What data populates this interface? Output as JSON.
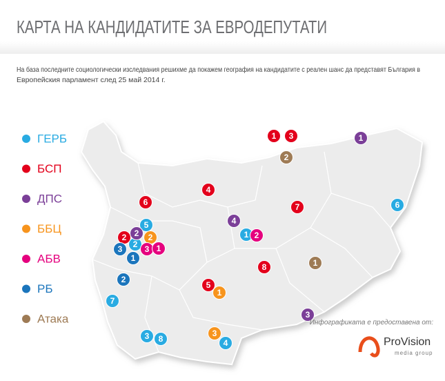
{
  "header": {
    "title": "КАРТА НА КАНДИДАТИТЕ ЗА ЕВРОДЕПУТАТИ",
    "description": [
      "На база последните социологически изследвания решихме да покажем география на кандидатите с реален шанс да представят България в",
      "Европейския парламент след 25 май 2014 г."
    ]
  },
  "parties": [
    {
      "name": "ГЕРБ",
      "color": "#29abe2",
      "candidates": [
        "6",
        "5",
        "1",
        "2",
        "7",
        "3",
        "8",
        "4"
      ]
    },
    {
      "name": "БСП",
      "color": "#e3001b",
      "candidates": [
        "1",
        "3",
        "4",
        "6",
        "7",
        "2",
        "8",
        "5"
      ]
    },
    {
      "name": "ДПС",
      "color": "#7b3f98",
      "candidates": [
        "1",
        "4",
        "2",
        "3"
      ]
    },
    {
      "name": "ББЦ",
      "color": "#f7941d",
      "candidates": [
        "2",
        "1",
        "3"
      ]
    },
    {
      "name": "АБВ",
      "color": "#e5007e",
      "candidates": [
        "2",
        "3",
        "1"
      ]
    },
    {
      "name": "РБ",
      "color": "#1b75bc",
      "candidates": [
        "3",
        "1",
        "2"
      ]
    },
    {
      "name": "Атака",
      "color": "#9e7b55",
      "candidates": [
        "2",
        "1"
      ]
    }
  ],
  "footer": {
    "credit": "Инфографиката е предоставена от:",
    "brand": "ProVision",
    "brand_sub": "media group"
  }
}
